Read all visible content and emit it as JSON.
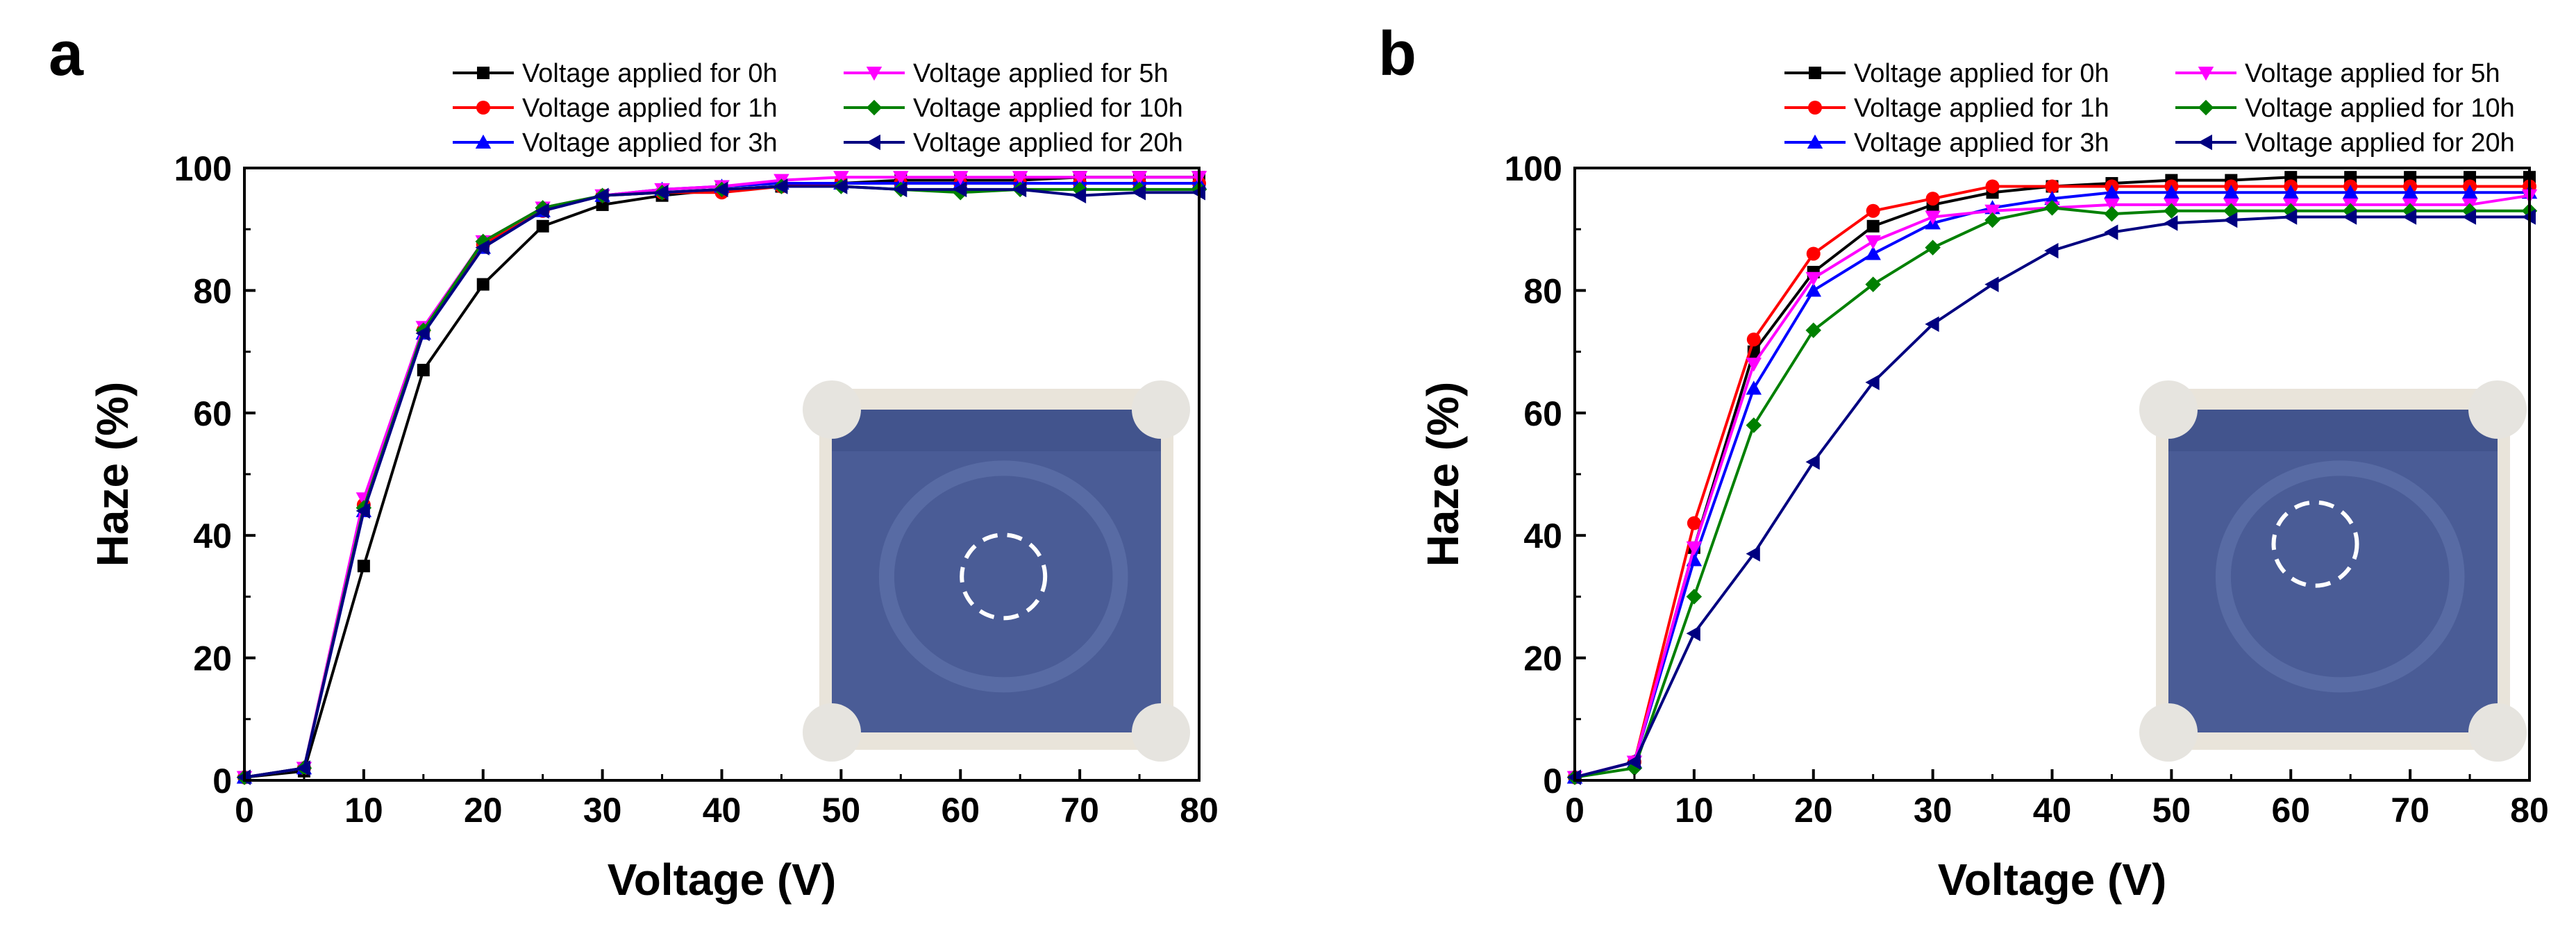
{
  "chart_data": [
    {
      "panel": "a",
      "type": "line",
      "xlabel": "Voltage (V)",
      "ylabel": "Haze (%)",
      "xlim": [
        0,
        80
      ],
      "ylim": [
        0,
        100
      ],
      "xticks": [
        0,
        10,
        20,
        30,
        40,
        50,
        60,
        70,
        80
      ],
      "yticks": [
        0,
        20,
        40,
        60,
        80,
        100
      ],
      "legend_placement": "top, outside, two columns",
      "inset": {
        "description": "photo of haze film",
        "circle_position": "center"
      },
      "x": [
        0,
        5,
        10,
        15,
        20,
        25,
        30,
        35,
        40,
        45,
        50,
        55,
        60,
        65,
        70,
        75,
        80
      ],
      "series": [
        {
          "name": "Voltage applied for 0h",
          "color": "#000000",
          "marker": "square",
          "values": [
            0.5,
            1.5,
            35,
            67,
            81,
            90.5,
            94,
            95.5,
            96.5,
            97,
            97.5,
            98,
            98,
            98,
            98.5,
            98.5,
            98.5
          ]
        },
        {
          "name": "Voltage applied for 1h",
          "color": "#ff0000",
          "marker": "circle",
          "values": [
            0.5,
            2,
            45,
            73.5,
            87.5,
            93,
            95.5,
            96,
            96,
            97,
            97.5,
            97.5,
            97.5,
            97.5,
            97.5,
            97.5,
            97.5
          ]
        },
        {
          "name": "Voltage applied for 3h",
          "color": "#0000ff",
          "marker": "triangle-up",
          "values": [
            0.5,
            2,
            44,
            73,
            87,
            93,
            95.5,
            96.5,
            97,
            97.5,
            97.5,
            97.5,
            97.5,
            97.5,
            97.5,
            97.5,
            97.5
          ]
        },
        {
          "name": "Voltage applied for 5h",
          "color": "#ff00ff",
          "marker": "triangle-down",
          "values": [
            0.5,
            2,
            46,
            74,
            88,
            93.5,
            95.5,
            96.5,
            97,
            98,
            98.5,
            98.5,
            98.5,
            98.5,
            98.5,
            98.5,
            98.5
          ]
        },
        {
          "name": "Voltage applied for 10h",
          "color": "#008000",
          "marker": "diamond",
          "values": [
            0.5,
            2,
            44.5,
            73.5,
            88,
            93.5,
            95.5,
            96,
            96.5,
            97,
            97,
            96.5,
            96,
            96.5,
            96.5,
            96.5,
            96.5
          ]
        },
        {
          "name": "Voltage applied for 20h",
          "color": "#000080",
          "marker": "triangle-left",
          "values": [
            0.5,
            2,
            44,
            73,
            87,
            93,
            95.5,
            96,
            96.5,
            97,
            97,
            96.5,
            96.5,
            96.5,
            95.5,
            96,
            96
          ]
        }
      ]
    },
    {
      "panel": "b",
      "type": "line",
      "xlabel": "Voltage (V)",
      "ylabel": "Haze (%)",
      "xlim": [
        0,
        80
      ],
      "ylim": [
        0,
        100
      ],
      "xticks": [
        0,
        10,
        20,
        30,
        40,
        50,
        60,
        70,
        80
      ],
      "yticks": [
        0,
        20,
        40,
        60,
        80,
        100
      ],
      "legend_placement": "top, outside, two columns",
      "inset": {
        "description": "photo of haze film",
        "circle_position": "center-left"
      },
      "x": [
        0,
        5,
        10,
        15,
        20,
        25,
        30,
        35,
        40,
        45,
        50,
        55,
        60,
        65,
        70,
        75,
        80
      ],
      "series": [
        {
          "name": "Voltage applied for 0h",
          "color": "#000000",
          "marker": "square",
          "values": [
            0.5,
            3,
            38,
            70,
            83,
            90.5,
            94,
            96,
            97,
            97.5,
            98,
            98,
            98.5,
            98.5,
            98.5,
            98.5,
            98.5
          ]
        },
        {
          "name": "Voltage applied for 1h",
          "color": "#ff0000",
          "marker": "circle",
          "values": [
            0.5,
            3,
            42,
            72,
            86,
            93,
            95,
            97,
            97,
            97,
            97,
            97,
            97,
            97,
            97,
            97,
            97
          ]
        },
        {
          "name": "Voltage applied for 3h",
          "color": "#0000ff",
          "marker": "triangle-up",
          "values": [
            0.5,
            3,
            36,
            64,
            80,
            86,
            91,
            93.5,
            95,
            96,
            96,
            96,
            96,
            96,
            96,
            96,
            96
          ]
        },
        {
          "name": "Voltage applied for 5h",
          "color": "#ff00ff",
          "marker": "triangle-down",
          "values": [
            0.5,
            3,
            38,
            68,
            82,
            88,
            92,
            93,
            93.5,
            94,
            94,
            94,
            94,
            94,
            94,
            94,
            95.5
          ]
        },
        {
          "name": "Voltage applied for 10h",
          "color": "#008000",
          "marker": "diamond",
          "values": [
            0.5,
            2,
            30,
            58,
            73.5,
            81,
            87,
            91.5,
            93.5,
            92.5,
            93,
            93,
            93,
            93,
            93,
            93,
            93
          ]
        },
        {
          "name": "Voltage applied for 20h",
          "color": "#000080",
          "marker": "triangle-left",
          "values": [
            0.5,
            3,
            24,
            37,
            52,
            65,
            74.5,
            81,
            86.5,
            89.5,
            91,
            91.5,
            92,
            92,
            92,
            92,
            92
          ]
        }
      ]
    }
  ]
}
